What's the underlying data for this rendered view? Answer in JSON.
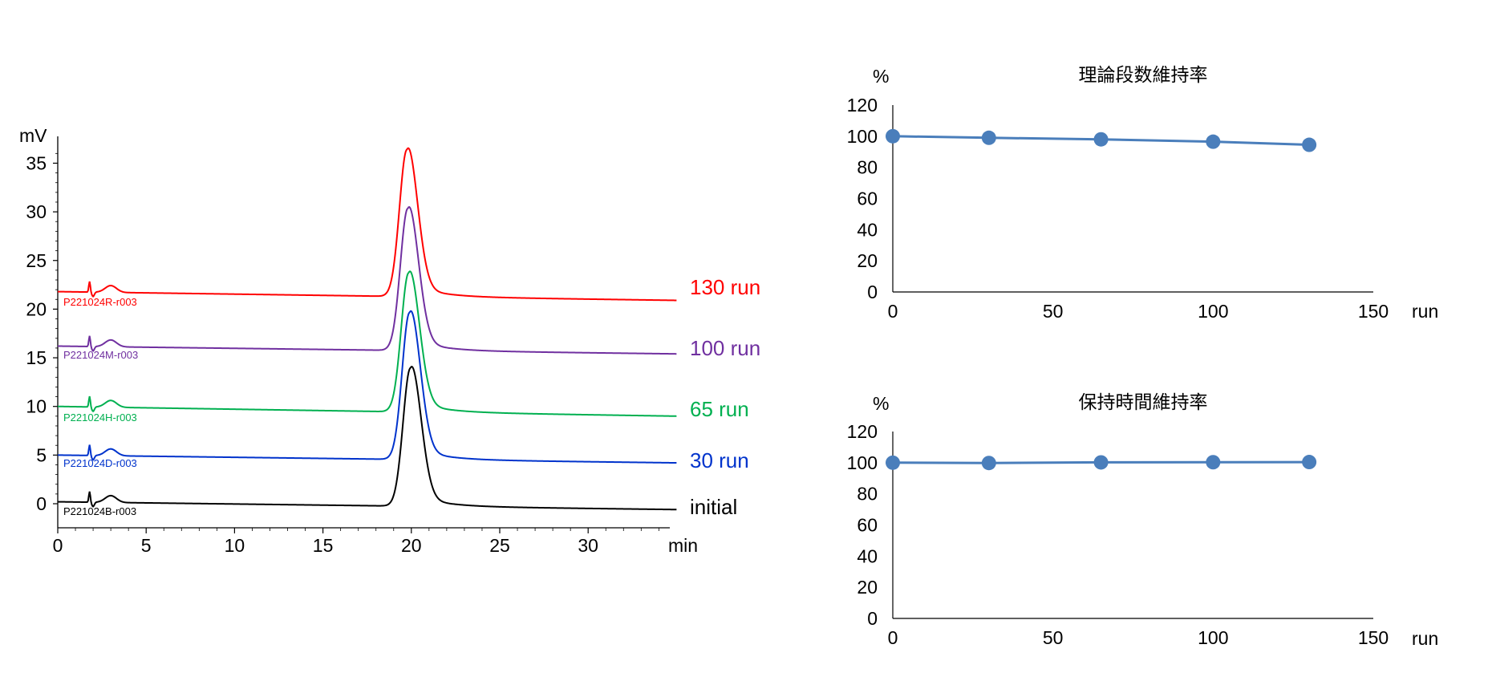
{
  "chromatogram": {
    "y_unit": "mV",
    "x_unit": "min",
    "x_ticks": [
      "0",
      "5",
      "10",
      "15",
      "20",
      "25",
      "30"
    ],
    "y_ticks": [
      "0",
      "5",
      "10",
      "15",
      "20",
      "25",
      "30",
      "35"
    ],
    "traces": [
      {
        "run_label": "130 run",
        "sample_id": "P221024R-r003",
        "color": "#ff0000",
        "baseline_start": 21.8,
        "baseline_end": 20.9,
        "peak_height": 36.9,
        "peak_time": 19.75
      },
      {
        "run_label": "100 run",
        "sample_id": "P221024M-r003",
        "color": "#7030a0",
        "baseline_start": 16.2,
        "baseline_end": 15.4,
        "peak_height": 30.8,
        "peak_time": 19.8
      },
      {
        "run_label": "65 run",
        "sample_id": "P221024H-r003",
        "color": "#00b050",
        "baseline_start": 10.0,
        "baseline_end": 9.0,
        "peak_height": 24.3,
        "peak_time": 19.85
      },
      {
        "run_label": "30 run",
        "sample_id": "P221024D-r003",
        "color": "#0033cc",
        "baseline_start": 5.0,
        "baseline_end": 4.2,
        "peak_height": 20.1,
        "peak_time": 19.9
      },
      {
        "run_label": "initial",
        "sample_id": "P221024B-r003",
        "color": "#000000",
        "baseline_start": 0.2,
        "baseline_end": -0.6,
        "peak_height": 14.4,
        "peak_time": 19.95
      }
    ]
  },
  "chart_data": [
    {
      "type": "line",
      "title": "理論段数維持率",
      "ylabel": "%",
      "xlabel": "run",
      "x": [
        0,
        30,
        65,
        100,
        130
      ],
      "values": [
        100,
        99,
        98,
        96.5,
        94.5
      ],
      "xlim": [
        0,
        150
      ],
      "ylim": [
        0,
        120
      ],
      "x_ticks": [
        "0",
        "50",
        "100",
        "150"
      ],
      "y_ticks": [
        "0",
        "20",
        "40",
        "60",
        "80",
        "100",
        "120"
      ],
      "color": "#4a7ebb"
    },
    {
      "type": "line",
      "title": "保持時間維持率",
      "ylabel": "%",
      "xlabel": "run",
      "x": [
        0,
        30,
        65,
        100,
        130
      ],
      "values": [
        100,
        99.8,
        100.2,
        100.3,
        100.4
      ],
      "xlim": [
        0,
        150
      ],
      "ylim": [
        0,
        120
      ],
      "x_ticks": [
        "0",
        "50",
        "100",
        "150"
      ],
      "y_ticks": [
        "0",
        "20",
        "40",
        "60",
        "80",
        "100",
        "120"
      ],
      "color": "#4a7ebb"
    }
  ]
}
